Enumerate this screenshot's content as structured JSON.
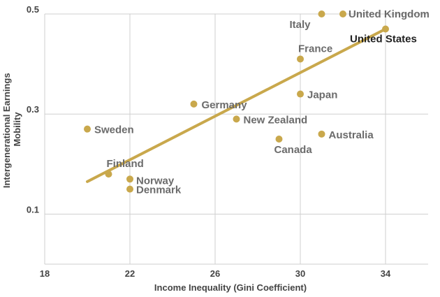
{
  "chart_data": {
    "type": "scatter",
    "title": "",
    "xlabel": "Income Inequality (Gini Coefficient)",
    "ylabel_lines": [
      "Intergenerational Earnings",
      "Mobility"
    ],
    "xlim": [
      18,
      36
    ],
    "ylim": [
      0,
      0.5
    ],
    "x_ticks": [
      18,
      22,
      26,
      30,
      34
    ],
    "x_tick_labels": [
      "18",
      "22",
      "26",
      "30",
      "34"
    ],
    "y_ticks": [
      0.1,
      0.3,
      0.5
    ],
    "y_tick_labels": [
      "0.1",
      "0.3",
      "0.5"
    ],
    "grid": true,
    "colors": {
      "point": "#c9a84c",
      "trend": "#c9a84c",
      "grid": "#cfcfcf",
      "label": "#6b6b6b",
      "highlight": "#222222"
    },
    "points": [
      {
        "label": "United Kingdom",
        "x": 32,
        "y": 0.5,
        "highlight": false
      },
      {
        "label": "Italy",
        "x": 31,
        "y": 0.5,
        "highlight": false
      },
      {
        "label": "United States",
        "x": 34,
        "y": 0.47,
        "highlight": true
      },
      {
        "label": "France",
        "x": 30,
        "y": 0.41,
        "highlight": false
      },
      {
        "label": "Japan",
        "x": 30,
        "y": 0.34,
        "highlight": false
      },
      {
        "label": "Germany",
        "x": 25,
        "y": 0.32,
        "highlight": false
      },
      {
        "label": "New Zealand",
        "x": 27,
        "y": 0.29,
        "highlight": false
      },
      {
        "label": "Sweden",
        "x": 20,
        "y": 0.27,
        "highlight": false
      },
      {
        "label": "Australia",
        "x": 31,
        "y": 0.26,
        "highlight": false
      },
      {
        "label": "Canada",
        "x": 29,
        "y": 0.25,
        "highlight": false
      },
      {
        "label": "Finland",
        "x": 21,
        "y": 0.18,
        "highlight": false
      },
      {
        "label": "Norway",
        "x": 22,
        "y": 0.17,
        "highlight": false
      },
      {
        "label": "Denmark",
        "x": 22,
        "y": 0.15,
        "highlight": false
      }
    ],
    "trendline": {
      "x": [
        20,
        34
      ],
      "y": [
        0.165,
        0.47
      ]
    }
  }
}
